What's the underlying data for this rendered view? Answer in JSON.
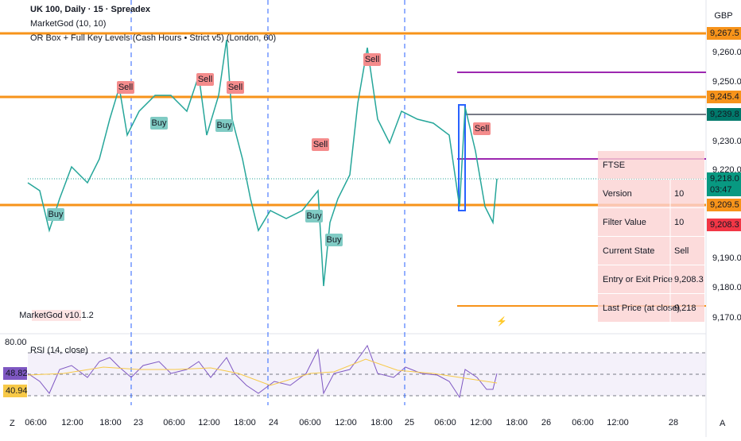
{
  "header": {
    "symbol": "UK 100, Daily · 15 · Spreadex",
    "indicators": [
      "MarketGod (10, 10)",
      "OR Box + Full Key Levels (Cash Hours • Strict v5) (London, 60)"
    ],
    "currency": "GBP"
  },
  "price_axis": [
    "9,260.0",
    "9,250.0",
    "9,230.0",
    "9,220.0",
    "9,190.0",
    "9,180.0",
    "9,170.0"
  ],
  "price_badges": [
    "9,267.5",
    "9,245.4",
    "9,239.8",
    "9,218.0",
    "03:47",
    "9,209.5",
    "9,208.3"
  ],
  "time_axis": [
    "06:00",
    "12:00",
    "18:00",
    "23",
    "06:00",
    "12:00",
    "18:00",
    "24",
    "06:00",
    "12:00",
    "18:00",
    "25",
    "06:00",
    "12:00",
    "18:00",
    "26",
    "06:00",
    "12:00",
    "28"
  ],
  "signals": [
    "Sell",
    "Buy",
    "Sell",
    "Sell",
    "Buy",
    "Buy",
    "Sell",
    "Buy",
    "Buy",
    "Sell",
    "Sell"
  ],
  "watermark": "MarketGod v10.1.2",
  "table": {
    "rows": [
      [
        "FTSE",
        ""
      ],
      [
        "Version",
        "10"
      ],
      [
        "Filter Value",
        "10"
      ],
      [
        "Current State",
        "Sell"
      ],
      [
        "Entry or Exit Price",
        "9,208.3"
      ],
      [
        "Last Price (at close)",
        "9,218"
      ]
    ]
  },
  "rsi": {
    "title": "RSI (14, close)",
    "upper": "80.00",
    "value": "48.82",
    "ma": "40.94"
  },
  "corners": [
    "Z",
    "A"
  ]
}
